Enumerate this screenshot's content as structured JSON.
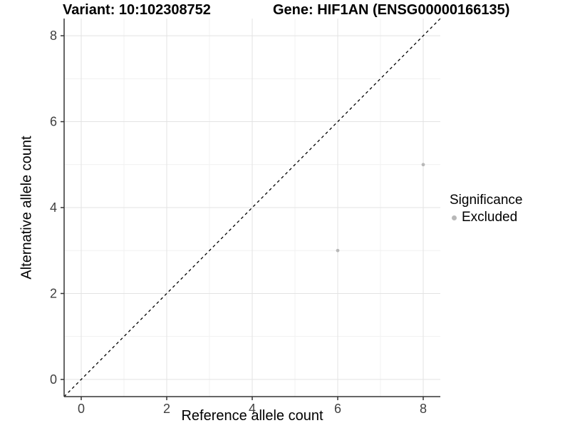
{
  "figure": {
    "title_left": "Variant: 10:102308752",
    "title_right": "Gene: HIF1AN (ENSG00000166135)"
  },
  "chart_data": {
    "type": "scatter",
    "title": "Variant: 10:102308752    Gene: HIF1AN (ENSG00000166135)",
    "xlabel": "Reference allele count",
    "ylabel": "Alternative allele count",
    "xlim": [
      -0.4,
      8.4
    ],
    "ylim": [
      -0.4,
      8.4
    ],
    "xticks": [
      0,
      2,
      4,
      6,
      8
    ],
    "yticks": [
      0,
      2,
      4,
      6,
      8
    ],
    "x_minor_gridlines": [
      1,
      3,
      5,
      7
    ],
    "y_minor_gridlines": [
      1,
      3,
      5,
      7
    ],
    "grid": "on",
    "series": [
      {
        "name": "Excluded",
        "color": "#b8b8b8",
        "points": [
          {
            "x": 6,
            "y": 3
          },
          {
            "x": 8,
            "y": 5
          }
        ]
      }
    ],
    "reference_line": {
      "slope": 1,
      "intercept": 0,
      "style": "dashed",
      "color": "#000000"
    },
    "legend": {
      "title": "Significance",
      "position": "right",
      "entries": [
        {
          "label": "Excluded",
          "color": "#b8b8b8"
        }
      ]
    },
    "colors": {
      "grid_major": "#e3e3e3",
      "grid_minor": "#f1f1f1",
      "axis_line": "#333333",
      "tick_text": "#404040",
      "background": "#ffffff"
    }
  }
}
